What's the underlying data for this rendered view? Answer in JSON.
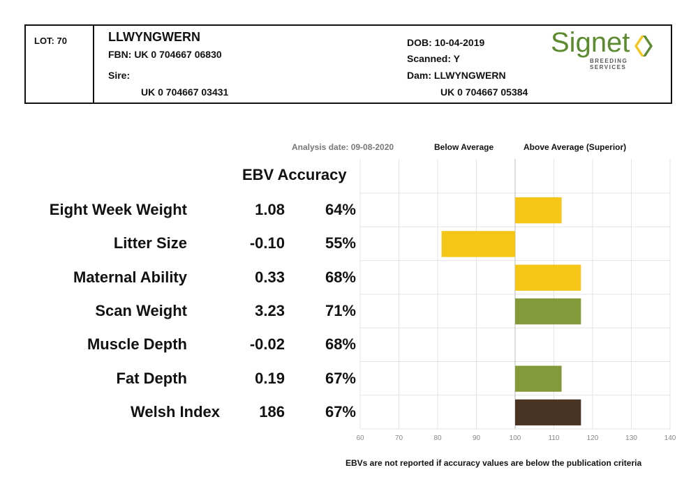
{
  "header": {
    "lot": "LOT: 70",
    "name": "LLWYNGWERN",
    "fbn": "FBN: UK 0 704667 06830",
    "sire_label": "Sire:",
    "sire_id": "UK 0 704667 03431",
    "dob": "DOB: 10-04-2019",
    "scanned": "Scanned: Y",
    "dam": "Dam: LLWYNGWERN",
    "dam_id": "UK 0 704667 05384"
  },
  "logo": {
    "word": "Signet",
    "subtitle": "BREEDING SERVICES",
    "colors": {
      "green": "#5c8a2e",
      "yellow": "#f5c518"
    }
  },
  "labels": {
    "analysis_date": "Analysis date: 09-08-2020",
    "below_average": "Below Average",
    "above_average": "Above Average (Superior)",
    "column_header": "EBV Accuracy",
    "footnote": "EBVs are not reported if accuracy values are below the publication criteria"
  },
  "chart_data": {
    "type": "bar",
    "orientation": "horizontal",
    "baseline": 100,
    "xlim": [
      60,
      140
    ],
    "x_ticks": [
      60,
      70,
      80,
      90,
      100,
      110,
      120,
      130,
      140
    ],
    "grid": true,
    "rows": [
      {
        "trait": "Eight Week Weight",
        "ebv": "1.08",
        "accuracy": "64%",
        "value": 112,
        "color": "#f5c518"
      },
      {
        "trait": "Litter Size",
        "ebv": "-0.10",
        "accuracy": "55%",
        "value": 81,
        "color": "#f5c518"
      },
      {
        "trait": "Maternal Ability",
        "ebv": "0.33",
        "accuracy": "68%",
        "value": 117,
        "color": "#f5c518"
      },
      {
        "trait": "Scan Weight",
        "ebv": "3.23",
        "accuracy": "71%",
        "value": 117,
        "color": "#84993a"
      },
      {
        "trait": "Muscle Depth",
        "ebv": "-0.02",
        "accuracy": "68%",
        "value": 100,
        "color": "#84993a"
      },
      {
        "trait": "Fat Depth",
        "ebv": "0.19",
        "accuracy": "67%",
        "value": 112,
        "color": "#84993a"
      },
      {
        "trait": "Welsh Index",
        "ebv": "186",
        "accuracy": "67%",
        "value": 117,
        "color": "#4a3524"
      }
    ]
  }
}
